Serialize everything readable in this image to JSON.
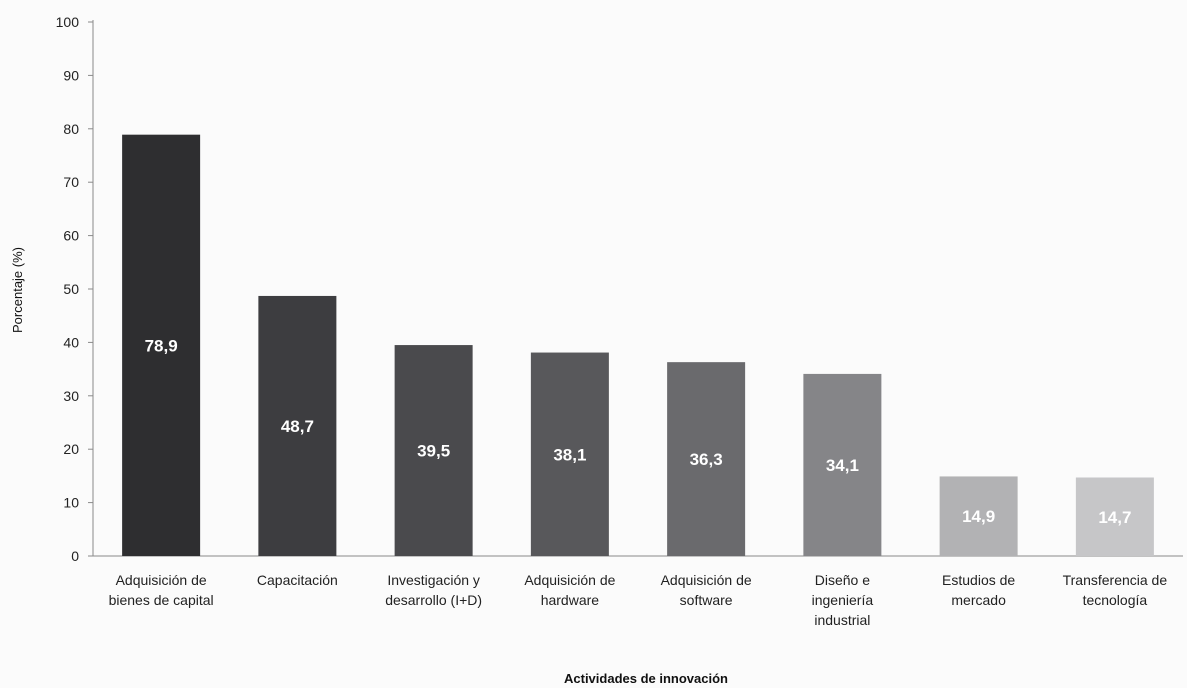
{
  "chart_data": {
    "type": "bar",
    "title": "",
    "xlabel": "Actividades de innovación",
    "ylabel": "Porcentaje (%)",
    "ylim": [
      0,
      100
    ],
    "yticks": [
      "0",
      "10",
      "20",
      "30",
      "40",
      "50",
      "60",
      "70",
      "80",
      "90",
      "100"
    ],
    "grid": false,
    "legend": "none",
    "categories": [
      [
        "Adquisición de",
        "bienes de capital"
      ],
      [
        "Capacitación"
      ],
      [
        "Investigación y",
        "desarrollo (I+D)"
      ],
      [
        "Adquisición de",
        "hardware"
      ],
      [
        "Adquisición de",
        "software"
      ],
      [
        "Diseño e",
        "ingeniería",
        "industrial"
      ],
      [
        "Estudios de",
        "mercado"
      ],
      [
        "Transferencia de",
        "tecnología"
      ]
    ],
    "values": [
      78.9,
      48.7,
      39.5,
      38.1,
      36.3,
      34.1,
      14.9,
      14.7
    ],
    "value_labels": [
      "78,9",
      "48,7",
      "39,5",
      "38,1",
      "36,3",
      "34,1",
      "14,9",
      "14,7"
    ],
    "bar_colors": [
      "#2e2e30",
      "#3d3d40",
      "#4a4a4d",
      "#58585b",
      "#6a6a6d",
      "#858588",
      "#b2b2b4",
      "#c6c6c8"
    ],
    "value_label_colors": [
      "#ffffff",
      "#ffffff",
      "#ffffff",
      "#ffffff",
      "#ffffff",
      "#ffffff",
      "#ffffff",
      "#ffffff"
    ]
  }
}
